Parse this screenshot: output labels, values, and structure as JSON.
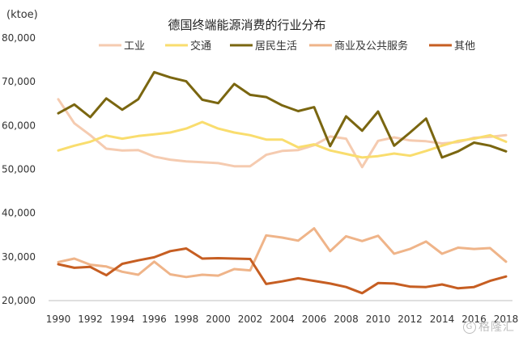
{
  "chart_data": {
    "type": "line",
    "title": "德国终端能源消费的行业分布",
    "ylabel": "(ktoe)",
    "xlabel": "",
    "ylim": [
      20000,
      80000
    ],
    "yticks": [
      20000,
      30000,
      40000,
      50000,
      60000,
      70000,
      80000
    ],
    "ytick_labels": [
      "20,000",
      "30,000",
      "40,000",
      "50,000",
      "60,000",
      "70,000",
      "80,000"
    ],
    "xticks": [
      1990,
      1992,
      1994,
      1996,
      1998,
      2000,
      2002,
      2004,
      2006,
      2008,
      2010,
      2012,
      2014,
      2016,
      2018
    ],
    "xtick_labels": [
      "1990",
      "1992",
      "1994",
      "1996",
      "1998",
      "2000",
      "2002",
      "2004",
      "2006",
      "2008",
      "2010",
      "2012",
      "2014",
      "2016",
      "2018"
    ],
    "x": [
      1990,
      1991,
      1992,
      1993,
      1994,
      1995,
      1996,
      1997,
      1998,
      1999,
      2000,
      2001,
      2002,
      2003,
      2004,
      2005,
      2006,
      2007,
      2008,
      2009,
      2010,
      2011,
      2012,
      2013,
      2014,
      2015,
      2016,
      2017,
      2018
    ],
    "grid": false,
    "legend_position": "top",
    "series": [
      {
        "name": "工业",
        "color": "#f5cbb0",
        "values": [
          66000,
          60500,
          57800,
          54700,
          54300,
          54400,
          52900,
          52200,
          51800,
          51600,
          51400,
          50700,
          50700,
          53300,
          54200,
          54400,
          55500,
          57500,
          57000,
          50500,
          56500,
          57300,
          56600,
          56400,
          55900,
          56200,
          57200,
          57400,
          57800
        ]
      },
      {
        "name": "交通",
        "color": "#f9dd6e",
        "values": [
          54300,
          55400,
          56300,
          57700,
          57000,
          57600,
          58000,
          58400,
          59300,
          60800,
          59300,
          58400,
          57800,
          56800,
          56800,
          55000,
          55700,
          54300,
          53500,
          52700,
          53000,
          53600,
          53100,
          54200,
          55400,
          56500,
          57000,
          57800,
          56300
        ]
      },
      {
        "name": "居民生活",
        "color": "#7a6610",
        "values": [
          62800,
          64800,
          61900,
          66200,
          63600,
          66000,
          72200,
          71000,
          70100,
          65900,
          65100,
          69500,
          67000,
          66500,
          64600,
          63300,
          64200,
          55300,
          62100,
          58800,
          63200,
          55400,
          58400,
          61600,
          52700,
          54100,
          56100,
          55400,
          54100
        ]
      },
      {
        "name": "商业及公共服务",
        "color": "#efb489",
        "values": [
          28800,
          29600,
          28200,
          27800,
          26600,
          25900,
          28900,
          26000,
          25400,
          25900,
          25700,
          27200,
          26900,
          34900,
          34400,
          33700,
          36500,
          31300,
          34700,
          33600,
          34800,
          30700,
          31800,
          33500,
          30700,
          32100,
          31800,
          32000,
          28900
        ]
      },
      {
        "name": "其他",
        "color": "#c65e22",
        "values": [
          28300,
          27500,
          27700,
          25800,
          28400,
          29200,
          29900,
          31300,
          31900,
          29600,
          29700,
          29600,
          29500,
          23800,
          24400,
          25100,
          24500,
          23900,
          23100,
          21700,
          24000,
          23900,
          23200,
          23100,
          23700,
          22800,
          23100,
          24500,
          25500
        ]
      }
    ]
  },
  "watermark": {
    "icon": "G",
    "text": "格隆汇"
  }
}
